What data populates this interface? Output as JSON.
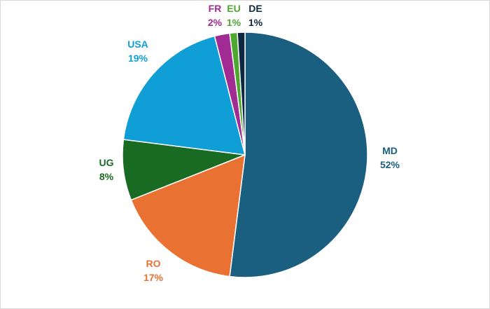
{
  "chart_data": {
    "type": "pie",
    "slices": [
      {
        "name": "MD",
        "value": 52,
        "label": "52%",
        "color": "#1a5e80"
      },
      {
        "name": "RO",
        "value": 17,
        "label": "17%",
        "color": "#e97132"
      },
      {
        "name": "UG",
        "value": 8,
        "label": "8%",
        "color": "#196b24"
      },
      {
        "name": "USA",
        "value": 19,
        "label": "19%",
        "color": "#0f9ed5"
      },
      {
        "name": "FR",
        "value": 2,
        "label": "2%",
        "color": "#a02b93"
      },
      {
        "name": "EU",
        "value": 1,
        "label": "1%",
        "color": "#4ea72e"
      },
      {
        "name": "DE",
        "value": 1,
        "label": "1%",
        "color": "#0e2841"
      }
    ],
    "title": "",
    "legend": "none",
    "label_position": "outside"
  }
}
